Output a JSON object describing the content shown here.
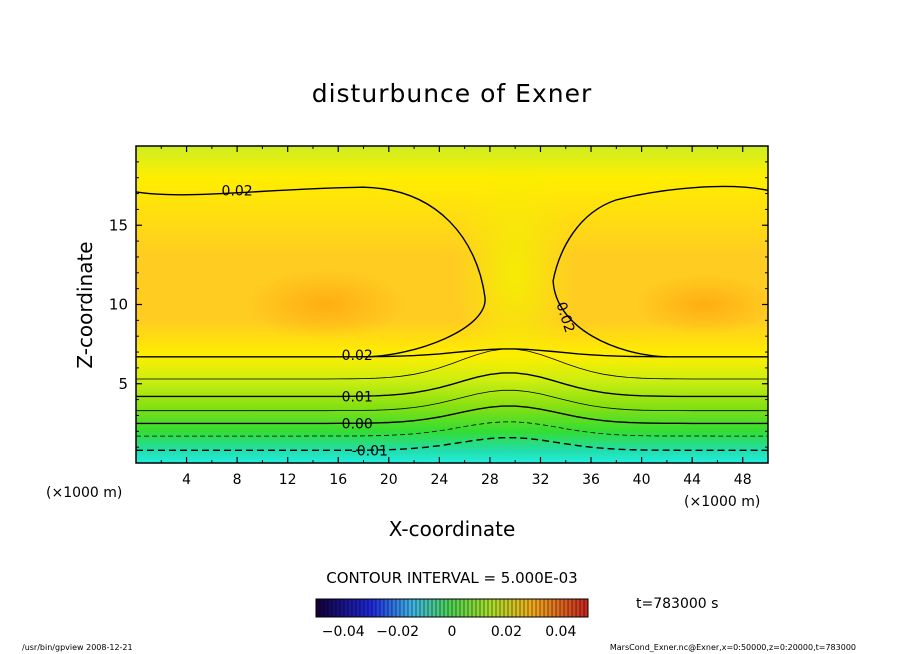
{
  "chart_data": {
    "type": "heatmap",
    "title": "disturbunce of Exner",
    "xlabel": "X-coordinate",
    "ylabel": "Z-coordinate",
    "x_unit": "(×1000 m)",
    "z_unit": "(×1000 m)",
    "xlim": [
      0,
      50
    ],
    "ylim": [
      0,
      20
    ],
    "x_ticks": [
      4,
      8,
      12,
      16,
      20,
      24,
      28,
      32,
      36,
      40,
      44,
      48
    ],
    "y_ticks": [
      5,
      10,
      15
    ],
    "contour_interval_text": "CONTOUR INTERVAL = 5.000E-03",
    "contour_labels": [
      "0.02",
      "0.02",
      "0.02",
      "0.01",
      "0.00",
      "-0.01"
    ],
    "colorbar": {
      "ticks": [
        -0.04,
        -0.02,
        0,
        0.02,
        0.04
      ],
      "tick_labels": [
        "−0.04",
        "−0.02",
        "0",
        "0.02",
        "0.04"
      ],
      "range": [
        -0.05,
        0.05
      ]
    },
    "time_label": "t=783000 s",
    "footer_left": "/usr/bin/gpview   2008-12-21",
    "footer_right": "MarsCond_Exner.nc@Exner,x=0:50000,z=0:20000,t=783000"
  }
}
